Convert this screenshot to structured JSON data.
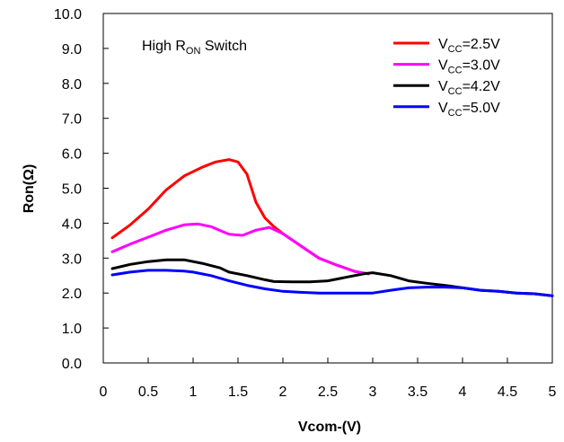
{
  "chart_data": {
    "type": "line",
    "xlabel": "Vcom-(V)",
    "ylabel": "Ron(Ω)",
    "annotation": {
      "main": "High R",
      "sub": "ON",
      "tail": " Switch"
    },
    "xlim": [
      0,
      5
    ],
    "ylim": [
      0,
      10
    ],
    "x_ticks": [
      "0",
      "0.5",
      "1",
      "1.5",
      "2",
      "2.5",
      "3",
      "3.5",
      "4",
      "4.5",
      "5"
    ],
    "y_ticks": [
      "0.0",
      "1.0",
      "2.0",
      "3.0",
      "4.0",
      "5.0",
      "6.0",
      "7.0",
      "8.0",
      "9.0",
      "10.0"
    ],
    "legend_position": "top-right",
    "grid": false,
    "series": [
      {
        "name": "VCC=2.5V",
        "label_main": "V",
        "label_sub": "CC",
        "label_tail": "=2.5V",
        "color": "#ff0000",
        "points": [
          [
            0.1,
            3.58
          ],
          [
            0.3,
            3.95
          ],
          [
            0.5,
            4.4
          ],
          [
            0.7,
            4.95
          ],
          [
            0.9,
            5.35
          ],
          [
            1.1,
            5.6
          ],
          [
            1.25,
            5.75
          ],
          [
            1.4,
            5.82
          ],
          [
            1.5,
            5.75
          ],
          [
            1.6,
            5.4
          ],
          [
            1.7,
            4.6
          ],
          [
            1.8,
            4.15
          ],
          [
            1.9,
            3.9
          ],
          [
            2.0,
            3.7
          ],
          [
            2.2,
            3.35
          ],
          [
            2.4,
            3.0
          ],
          [
            2.6,
            2.8
          ],
          [
            2.8,
            2.62
          ],
          [
            2.95,
            2.55
          ]
        ]
      },
      {
        "name": "VCC=3.0V",
        "label_main": "V",
        "label_sub": "CC",
        "label_tail": "=3.0V",
        "color": "#ff00ff",
        "points": [
          [
            0.1,
            3.18
          ],
          [
            0.3,
            3.4
          ],
          [
            0.5,
            3.6
          ],
          [
            0.7,
            3.8
          ],
          [
            0.9,
            3.95
          ],
          [
            1.05,
            3.98
          ],
          [
            1.2,
            3.9
          ],
          [
            1.4,
            3.68
          ],
          [
            1.55,
            3.65
          ],
          [
            1.7,
            3.8
          ],
          [
            1.85,
            3.88
          ],
          [
            2.0,
            3.7
          ],
          [
            2.2,
            3.35
          ],
          [
            2.4,
            3.0
          ],
          [
            2.6,
            2.8
          ],
          [
            2.8,
            2.62
          ],
          [
            2.95,
            2.55
          ]
        ]
      },
      {
        "name": "VCC=4.2V",
        "label_main": "V",
        "label_sub": "CC",
        "label_tail": "=4.2V",
        "color": "#000000",
        "points": [
          [
            0.1,
            2.7
          ],
          [
            0.3,
            2.82
          ],
          [
            0.5,
            2.9
          ],
          [
            0.7,
            2.95
          ],
          [
            0.9,
            2.95
          ],
          [
            1.1,
            2.85
          ],
          [
            1.3,
            2.72
          ],
          [
            1.4,
            2.6
          ],
          [
            1.6,
            2.5
          ],
          [
            1.8,
            2.38
          ],
          [
            1.9,
            2.33
          ],
          [
            2.1,
            2.32
          ],
          [
            2.3,
            2.32
          ],
          [
            2.5,
            2.35
          ],
          [
            2.7,
            2.45
          ],
          [
            2.9,
            2.55
          ],
          [
            3.0,
            2.58
          ],
          [
            3.2,
            2.5
          ],
          [
            3.4,
            2.35
          ],
          [
            3.6,
            2.28
          ],
          [
            3.8,
            2.22
          ],
          [
            4.0,
            2.15
          ],
          [
            4.2,
            2.08
          ],
          [
            4.4,
            2.05
          ],
          [
            4.6,
            2.0
          ],
          [
            4.8,
            1.98
          ],
          [
            5.0,
            1.92
          ]
        ]
      },
      {
        "name": "VCC=5.0V",
        "label_main": "V",
        "label_sub": "CC",
        "label_tail": "=5.0V",
        "color": "#0000ff",
        "points": [
          [
            0.1,
            2.52
          ],
          [
            0.3,
            2.6
          ],
          [
            0.5,
            2.65
          ],
          [
            0.7,
            2.65
          ],
          [
            0.9,
            2.63
          ],
          [
            1.0,
            2.6
          ],
          [
            1.2,
            2.5
          ],
          [
            1.4,
            2.35
          ],
          [
            1.6,
            2.22
          ],
          [
            1.8,
            2.12
          ],
          [
            2.0,
            2.05
          ],
          [
            2.2,
            2.02
          ],
          [
            2.4,
            2.0
          ],
          [
            2.6,
            2.0
          ],
          [
            2.8,
            2.0
          ],
          [
            3.0,
            2.0
          ],
          [
            3.2,
            2.08
          ],
          [
            3.4,
            2.15
          ],
          [
            3.6,
            2.17
          ],
          [
            3.8,
            2.17
          ],
          [
            4.0,
            2.15
          ],
          [
            4.2,
            2.08
          ],
          [
            4.4,
            2.05
          ],
          [
            4.6,
            2.0
          ],
          [
            4.8,
            1.98
          ],
          [
            5.0,
            1.92
          ]
        ]
      }
    ]
  }
}
